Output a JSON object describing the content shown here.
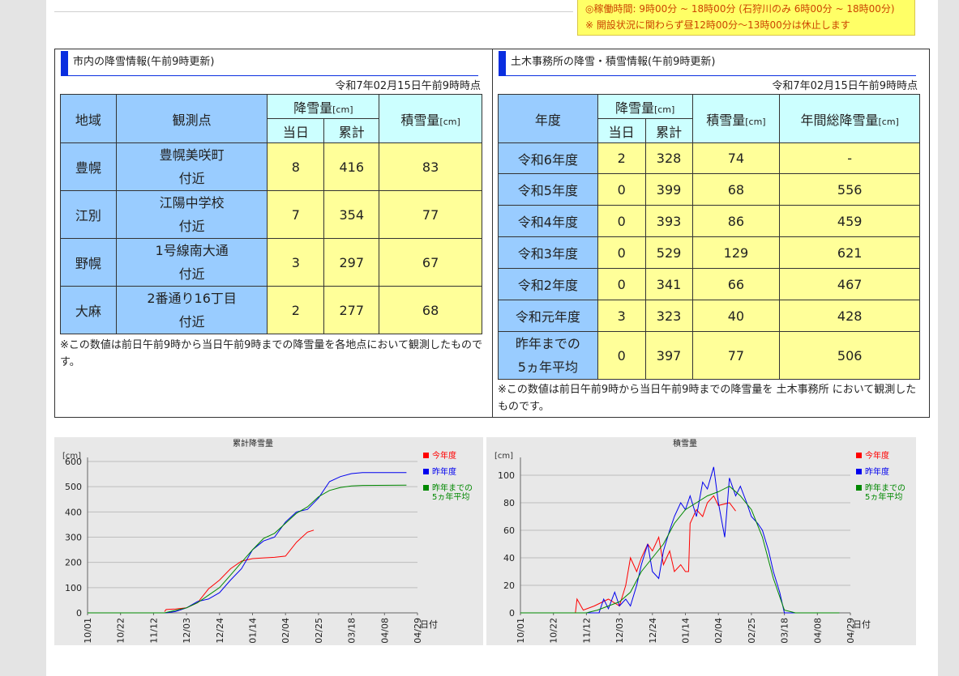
{
  "notice": {
    "hours": "◎稼働時間: 9時00分 ~ 18時00分 (石狩川のみ 6時00分 ~ 18時00分)",
    "break": "※ 開設状況に関わらず昼12時00分～13時00分は休止します"
  },
  "city_panel": {
    "title": "市内の降雪情報(午前9時更新)",
    "as_of": "令和7年02月15日午前9時時点",
    "headers": {
      "region": "地域",
      "point": "観測点",
      "snowfall": "降雪量",
      "unit": "[cm]",
      "today": "当日",
      "total": "累計",
      "depth": "積雪量"
    },
    "rows": [
      {
        "region": "豊幌",
        "point1": "豊幌美咲町",
        "point2": "付近",
        "today": "8",
        "total": "416",
        "depth": "83"
      },
      {
        "region": "江別",
        "point1": "江陽中学校",
        "point2": "付近",
        "today": "7",
        "total": "354",
        "depth": "77"
      },
      {
        "region": "野幌",
        "point1": "1号線南大通",
        "point2": "付近",
        "today": "3",
        "total": "297",
        "depth": "67"
      },
      {
        "region": "大麻",
        "point1": "2番通り16丁目",
        "point2": "付近",
        "today": "2",
        "total": "277",
        "depth": "68"
      }
    ],
    "note": "※この数値は前日午前9時から当日午前9時までの降雪量を各地点において観測したものです。"
  },
  "civil_panel": {
    "title": "土木事務所の降雪・積雪情報(午前9時更新)",
    "as_of": "令和7年02月15日午前9時時点",
    "headers": {
      "year": "年度",
      "snowfall": "降雪量",
      "unit": "[cm]",
      "today": "当日",
      "total": "累計",
      "depth": "積雪量",
      "annual": "年間総降雪量"
    },
    "rows": [
      {
        "year": "令和6年度",
        "today": "2",
        "total": "328",
        "depth": "74",
        "annual": "-"
      },
      {
        "year": "令和5年度",
        "today": "0",
        "total": "399",
        "depth": "68",
        "annual": "556"
      },
      {
        "year": "令和4年度",
        "today": "0",
        "total": "393",
        "depth": "86",
        "annual": "459"
      },
      {
        "year": "令和3年度",
        "today": "0",
        "total": "529",
        "depth": "129",
        "annual": "621"
      },
      {
        "year": "令和2年度",
        "today": "0",
        "total": "341",
        "depth": "66",
        "annual": "467"
      },
      {
        "year": "令和元年度",
        "today": "3",
        "total": "323",
        "depth": "40",
        "annual": "428"
      }
    ],
    "avg_row": {
      "year1": "昨年までの",
      "year2": "5ヵ年平均",
      "today": "0",
      "total": "397",
      "depth": "77",
      "annual": "506"
    },
    "note": "※この数値は前日午前9時から当日午前9時までの降雪量を 土木事務所 において観測したものです。"
  },
  "chart_data": [
    {
      "type": "line",
      "title": "累計降雪量",
      "ylabel": "[cm]",
      "xlabel": "日付",
      "ylim": [
        0,
        600
      ],
      "yticks": [
        0,
        100,
        200,
        300,
        400,
        500,
        600
      ],
      "xticks": [
        "10/01",
        "10/22",
        "11/12",
        "12/03",
        "12/24",
        "01/14",
        "02/04",
        "02/25",
        "03/18",
        "04/08",
        "04/29"
      ],
      "grid": true,
      "legend": "top-right",
      "colors": {
        "current": "#ff0000",
        "last": "#0000ee",
        "avg": "#008800"
      },
      "series": [
        {
          "name": "今年度",
          "color": "#ff0000",
          "points": [
            [
              49,
              5
            ],
            [
              50,
              13
            ],
            [
              56,
              15
            ],
            [
              63,
              20
            ],
            [
              70,
              40
            ],
            [
              77,
              95
            ],
            [
              84,
              130
            ],
            [
              91,
              175
            ],
            [
              98,
              205
            ],
            [
              105,
              215
            ],
            [
              112,
              218
            ],
            [
              119,
              220
            ],
            [
              126,
              225
            ],
            [
              133,
              280
            ],
            [
              140,
              320
            ],
            [
              144,
              328
            ]
          ]
        },
        {
          "name": "昨年度",
          "color": "#0000ee",
          "points": [
            [
              0,
              0
            ],
            [
              50,
              0
            ],
            [
              56,
              5
            ],
            [
              63,
              20
            ],
            [
              70,
              45
            ],
            [
              77,
              55
            ],
            [
              84,
              80
            ],
            [
              91,
              130
            ],
            [
              98,
              175
            ],
            [
              105,
              250
            ],
            [
              112,
              285
            ],
            [
              119,
              300
            ],
            [
              126,
              360
            ],
            [
              133,
              400
            ],
            [
              140,
              410
            ],
            [
              147,
              455
            ],
            [
              154,
              520
            ],
            [
              161,
              540
            ],
            [
              168,
              552
            ],
            [
              175,
              556
            ],
            [
              203,
              556
            ]
          ]
        },
        {
          "name": "昨年までの5ヵ年平均",
          "color": "#008800",
          "points": [
            [
              0,
              0
            ],
            [
              49,
              0
            ],
            [
              56,
              10
            ],
            [
              63,
              20
            ],
            [
              70,
              40
            ],
            [
              77,
              70
            ],
            [
              84,
              100
            ],
            [
              91,
              150
            ],
            [
              98,
              200
            ],
            [
              105,
              250
            ],
            [
              112,
              295
            ],
            [
              119,
              315
            ],
            [
              126,
              355
            ],
            [
              133,
              395
            ],
            [
              140,
              420
            ],
            [
              147,
              460
            ],
            [
              154,
              485
            ],
            [
              161,
              497
            ],
            [
              168,
              503
            ],
            [
              175,
              505
            ],
            [
              203,
              506
            ]
          ]
        }
      ]
    },
    {
      "type": "line",
      "title": "積雪量",
      "ylabel": "[cm]",
      "xlabel": "日付",
      "ylim": [
        0,
        110
      ],
      "yticks": [
        0,
        20,
        40,
        60,
        80,
        100
      ],
      "xticks": [
        "10/01",
        "10/22",
        "11/12",
        "12/03",
        "12/24",
        "01/14",
        "02/04",
        "02/25",
        "03/18",
        "04/08",
        "04/29"
      ],
      "grid": true,
      "legend": "top-right",
      "colors": {
        "current": "#ff0000",
        "last": "#0000ee",
        "avg": "#008800"
      },
      "series": [
        {
          "name": "今年度",
          "color": "#ff0000",
          "points": [
            [
              35,
              0
            ],
            [
              36,
              10
            ],
            [
              40,
              2
            ],
            [
              47,
              5
            ],
            [
              56,
              10
            ],
            [
              63,
              5
            ],
            [
              67,
              20
            ],
            [
              70,
              40
            ],
            [
              74,
              30
            ],
            [
              77,
              40
            ],
            [
              81,
              50
            ],
            [
              84,
              45
            ],
            [
              88,
              55
            ],
            [
              91,
              35
            ],
            [
              95,
              45
            ],
            [
              98,
              30
            ],
            [
              102,
              35
            ],
            [
              105,
              30
            ],
            [
              107,
              30
            ],
            [
              108,
              65
            ],
            [
              112,
              75
            ],
            [
              116,
              70
            ],
            [
              119,
              80
            ],
            [
              123,
              85
            ],
            [
              126,
              78
            ],
            [
              133,
              80
            ],
            [
              137,
              74
            ]
          ]
        },
        {
          "name": "昨年度",
          "color": "#0000ee",
          "points": [
            [
              0,
              0
            ],
            [
              50,
              0
            ],
            [
              53,
              10
            ],
            [
              56,
              3
            ],
            [
              60,
              15
            ],
            [
              63,
              5
            ],
            [
              67,
              10
            ],
            [
              70,
              5
            ],
            [
              74,
              20
            ],
            [
              77,
              35
            ],
            [
              81,
              50
            ],
            [
              84,
              30
            ],
            [
              88,
              25
            ],
            [
              91,
              45
            ],
            [
              95,
              60
            ],
            [
              98,
              70
            ],
            [
              102,
              80
            ],
            [
              105,
              75
            ],
            [
              108,
              85
            ],
            [
              112,
              70
            ],
            [
              116,
              95
            ],
            [
              119,
              90
            ],
            [
              123,
              106
            ],
            [
              126,
              80
            ],
            [
              130,
              55
            ],
            [
              133,
              98
            ],
            [
              137,
              85
            ],
            [
              140,
              92
            ],
            [
              144,
              80
            ],
            [
              147,
              70
            ],
            [
              151,
              65
            ],
            [
              154,
              60
            ],
            [
              158,
              45
            ],
            [
              161,
              30
            ],
            [
              165,
              15
            ],
            [
              168,
              0
            ],
            [
              203,
              0
            ]
          ]
        },
        {
          "name": "昨年までの5ヵ年平均",
          "color": "#008800",
          "points": [
            [
              0,
              0
            ],
            [
              42,
              0
            ],
            [
              49,
              2
            ],
            [
              56,
              5
            ],
            [
              63,
              8
            ],
            [
              70,
              15
            ],
            [
              77,
              30
            ],
            [
              84,
              40
            ],
            [
              91,
              50
            ],
            [
              98,
              65
            ],
            [
              105,
              75
            ],
            [
              112,
              80
            ],
            [
              119,
              85
            ],
            [
              126,
              88
            ],
            [
              133,
              92
            ],
            [
              140,
              85
            ],
            [
              147,
              75
            ],
            [
              154,
              55
            ],
            [
              161,
              25
            ],
            [
              168,
              2
            ],
            [
              175,
              0
            ],
            [
              203,
              0
            ]
          ]
        }
      ]
    }
  ]
}
